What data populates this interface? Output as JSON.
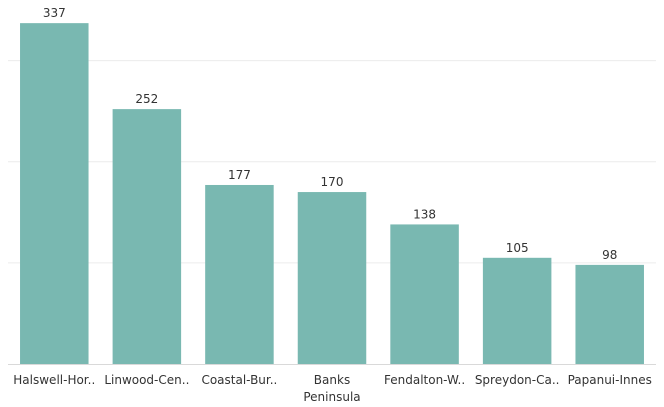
{
  "chart_data": {
    "type": "bar",
    "title": "",
    "xlabel": "",
    "ylabel": "",
    "categories": [
      "Halswell-Hor..",
      "Linwood-Cen..",
      "Coastal-Bur..",
      "Banks Peninsula",
      "Fendalton-W..",
      "Spreydon-Ca..",
      "Papanui-Innes"
    ],
    "values": [
      337,
      252,
      177,
      170,
      138,
      105,
      98
    ],
    "ylim": [
      0,
      350
    ],
    "gridlines": [
      100,
      200,
      300
    ],
    "grid": true,
    "legend": "none",
    "bar_color": "#79b8b1",
    "grid_color": "#ececec"
  }
}
